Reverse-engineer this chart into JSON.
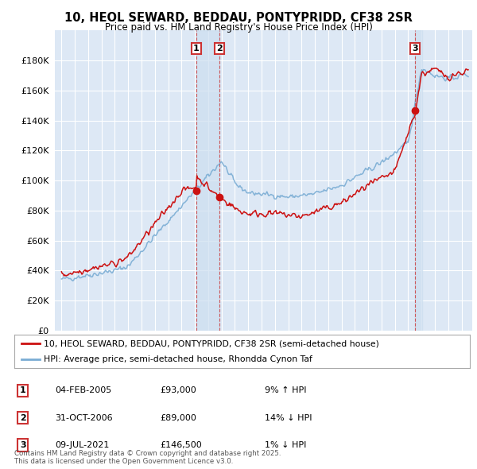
{
  "title": "10, HEOL SEWARD, BEDDAU, PONTYPRIDD, CF38 2SR",
  "subtitle": "Price paid vs. HM Land Registry's House Price Index (HPI)",
  "background_color": "#ffffff",
  "plot_bg_color": "#dde8f5",
  "grid_color": "#ffffff",
  "ylim": [
    0,
    200000
  ],
  "yticks": [
    0,
    20000,
    40000,
    60000,
    80000,
    100000,
    120000,
    140000,
    160000,
    180000
  ],
  "ytick_labels": [
    "£0",
    "£20K",
    "£40K",
    "£60K",
    "£80K",
    "£100K",
    "£120K",
    "£140K",
    "£160K",
    "£180K"
  ],
  "hpi_color": "#7aadd4",
  "price_color": "#cc1111",
  "vline_color": "#cc3333",
  "transactions": [
    {
      "label": "1",
      "date": 2005.09,
      "price": 93000
    },
    {
      "label": "2",
      "date": 2006.83,
      "price": 89000
    },
    {
      "label": "3",
      "date": 2021.52,
      "price": 146500
    }
  ],
  "legend_entries": [
    "10, HEOL SEWARD, BEDDAU, PONTYPRIDD, CF38 2SR (semi-detached house)",
    "HPI: Average price, semi-detached house, Rhondda Cynon Taf"
  ],
  "table_rows": [
    {
      "num": "1",
      "date": "04-FEB-2005",
      "price": "£93,000",
      "hpi": "9% ↑ HPI"
    },
    {
      "num": "2",
      "date": "31-OCT-2006",
      "price": "£89,000",
      "hpi": "14% ↓ HPI"
    },
    {
      "num": "3",
      "date": "09-JUL-2021",
      "price": "£146,500",
      "hpi": "1% ↓ HPI"
    }
  ],
  "footnote": "Contains HM Land Registry data © Crown copyright and database right 2025.\nThis data is licensed under the Open Government Licence v3.0.",
  "xlim_start": 1994.5,
  "xlim_end": 2025.8
}
